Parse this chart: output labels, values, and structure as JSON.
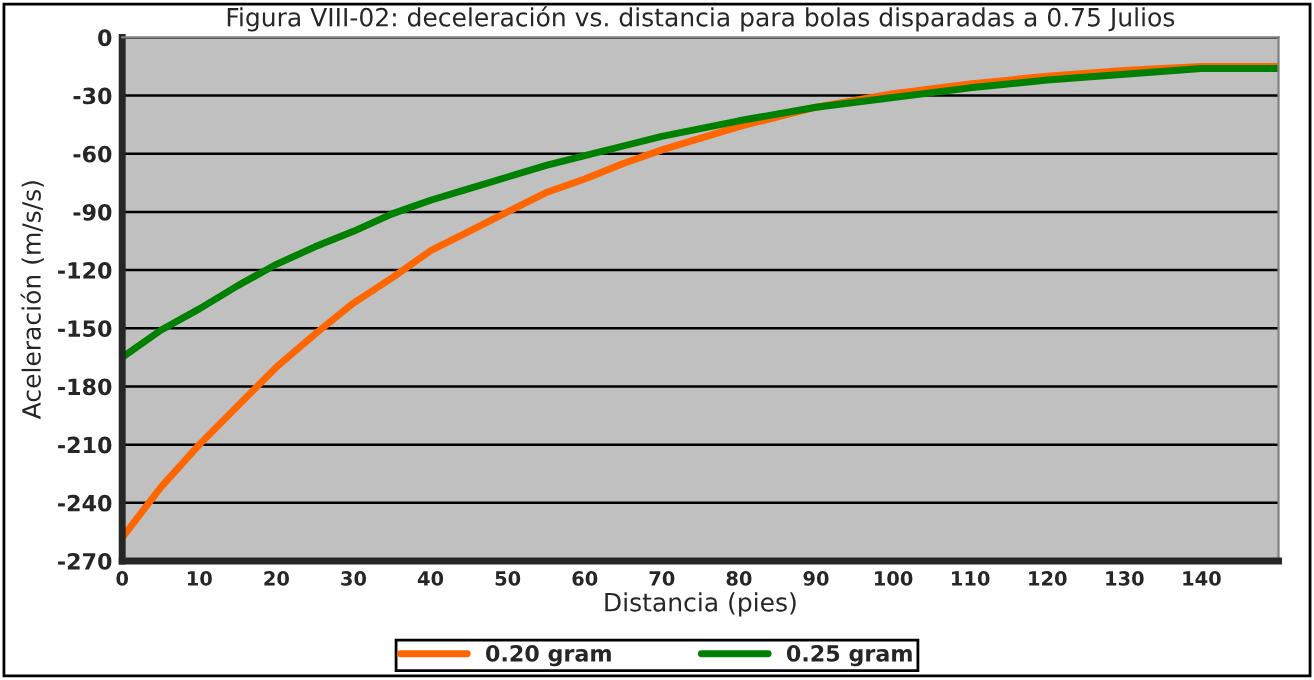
{
  "chart_data": {
    "type": "line",
    "title": "Figura VIII-02: deceleración vs. distancia para bolas disparadas a 0.75 Julios",
    "xlabel": "Distancia (pies)",
    "ylabel": "Aceleración (m/s/s)",
    "x": [
      0,
      5,
      10,
      15,
      20,
      25,
      30,
      35,
      40,
      45,
      50,
      55,
      60,
      65,
      70,
      80,
      90,
      100,
      110,
      120,
      130,
      140,
      150
    ],
    "series": [
      {
        "name": "0.20 gram",
        "color": "#ff6600",
        "values": [
          -258,
          -232,
          -210,
          -190,
          -170,
          -153,
          -137,
          -124,
          -110,
          -100,
          -90,
          -80,
          -73,
          -65,
          -58,
          -46,
          -36,
          -29,
          -24,
          -20,
          -17,
          -15,
          -15
        ]
      },
      {
        "name": "0.25 gram",
        "color": "#008000",
        "values": [
          -165,
          -151,
          -140,
          -128,
          -117,
          -108,
          -100,
          -91,
          -84,
          -78,
          -72,
          -66,
          -61,
          -56,
          -51,
          -43,
          -36,
          -31,
          -26,
          -22,
          -19,
          -16,
          -16
        ]
      }
    ],
    "xlim": [
      0,
      150
    ],
    "xticks": [
      0,
      10,
      20,
      30,
      40,
      50,
      60,
      70,
      80,
      90,
      100,
      110,
      120,
      130,
      140
    ],
    "ylim": [
      -270,
      0
    ],
    "yticks": [
      -270,
      -240,
      -210,
      -180,
      -150,
      -120,
      -90,
      -60,
      -30,
      0
    ],
    "grid": "y",
    "legend": "bottom",
    "marker": "none",
    "line_style": "solid"
  }
}
